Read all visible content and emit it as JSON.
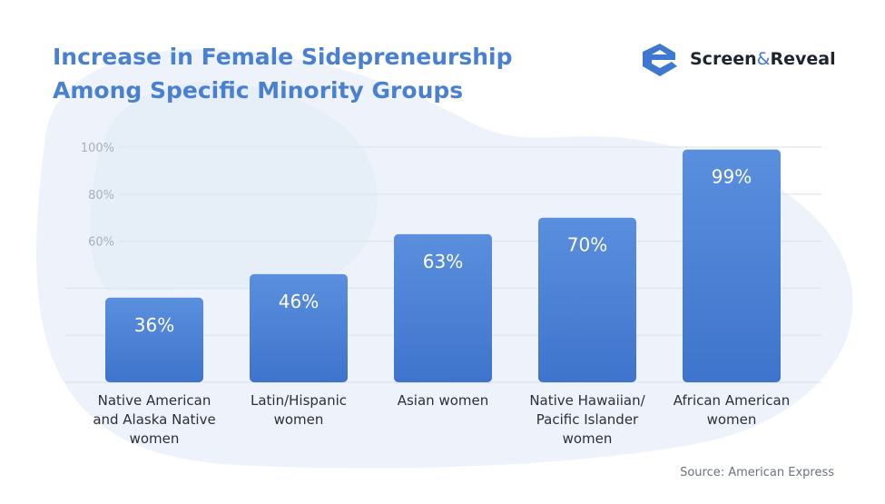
{
  "title_lines": [
    "Increase in Female Sidepreneurship",
    "Among Specific Minority Groups"
  ],
  "brand": {
    "name_part1": "Screen",
    "ampersand": "&",
    "name_part2": "Reveal",
    "logo_icon": "stylized-e-logo-icon"
  },
  "source": "Source: American Express",
  "colors": {
    "title": "#4a80d2",
    "bar_top": "#5a8fde",
    "bar_bottom": "#3f74cc",
    "background_blob": "#eaf1fb",
    "grid": "#dfe3ea"
  },
  "chart_data": {
    "type": "bar",
    "title": "Increase in Female Sidepreneurship Among Specific Minority Groups",
    "categories": [
      "Native American and Alaska Native women",
      "Latin/Hispanic women",
      "Asian women",
      "Native Hawaiian/ Pacific Islander women",
      "African American women"
    ],
    "category_lines": [
      [
        "Native American",
        "and Alaska Native",
        "women"
      ],
      [
        "Latin/Hispanic",
        "women"
      ],
      [
        "Asian women"
      ],
      [
        "Native Hawaiian/",
        "Pacific Islander",
        "women"
      ],
      [
        "African American",
        "women"
      ]
    ],
    "values": [
      36,
      46,
      63,
      70,
      99
    ],
    "value_labels": [
      "36%",
      "46%",
      "63%",
      "70%",
      "99%"
    ],
    "ylim": [
      0,
      100
    ],
    "ytick_labels": [
      "60%",
      "80%",
      "100%"
    ],
    "ytick_values": [
      60,
      80,
      100
    ],
    "grid_values": [
      20,
      40,
      60,
      80,
      100
    ],
    "grid": true,
    "legend": "none",
    "xlabel": "",
    "ylabel": ""
  }
}
